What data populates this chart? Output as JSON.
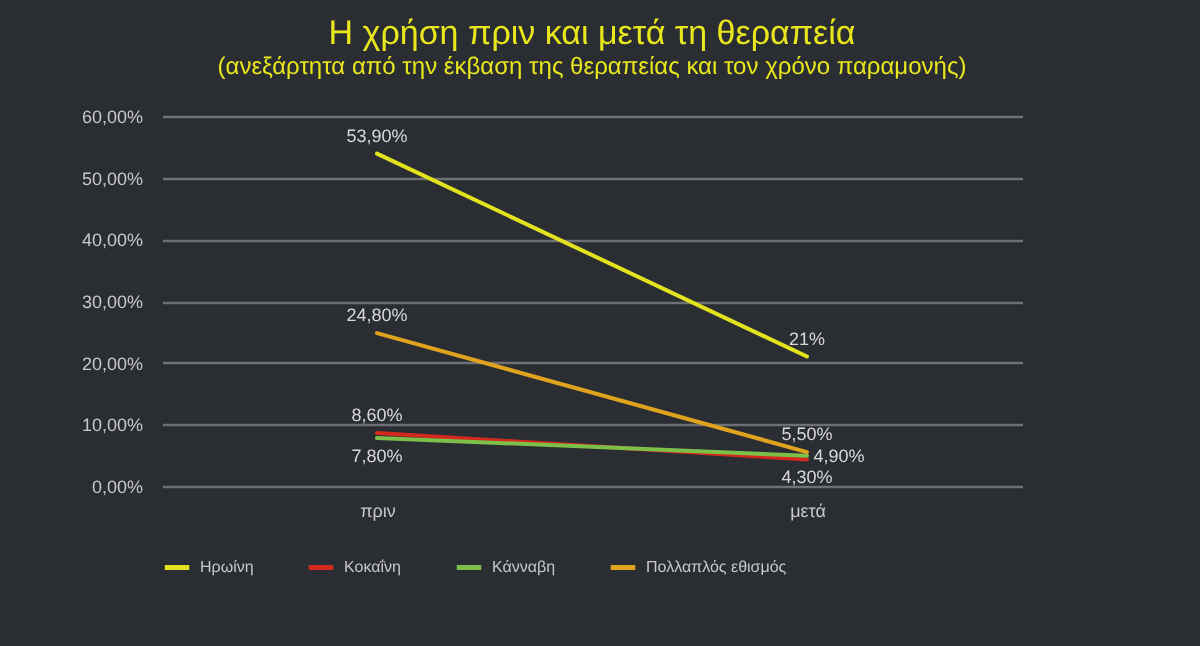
{
  "chart_data": {
    "type": "line",
    "title": "Η χρήση πριν και μετά τη θεραπεία",
    "subtitle": "(ανεξάρτητα από την έκβαση της θεραπείας και τον χρόνο παραμονής)",
    "categories": [
      "πριν",
      "μετά"
    ],
    "series": [
      {
        "name": "Ηρωίνη",
        "color": "#e3e21e",
        "values": [
          53.9,
          21
        ],
        "value_labels": [
          "53,90%",
          "21%"
        ]
      },
      {
        "name": "Κοκαΐνη",
        "color": "#d42a1e",
        "values": [
          8.6,
          4.3
        ],
        "value_labels": [
          "8,60%",
          "4,30%"
        ]
      },
      {
        "name": "Κάνναβη",
        "color": "#7cc04a",
        "values": [
          7.8,
          4.9
        ],
        "value_labels": [
          "7,80%",
          "4,90%"
        ]
      },
      {
        "name": "Πολλαπλός εθισμός",
        "color": "#e0a31e",
        "values": [
          24.8,
          5.5
        ],
        "value_labels": [
          "24,80%",
          "5,50%"
        ]
      }
    ],
    "ylim": [
      0,
      60
    ],
    "yticks": [
      {
        "value": 0,
        "label": "0,00%"
      },
      {
        "value": 10,
        "label": "10,00%"
      },
      {
        "value": 20,
        "label": "20,00%"
      },
      {
        "value": 30,
        "label": "30,00%"
      },
      {
        "value": 40,
        "label": "40,00%"
      },
      {
        "value": 50,
        "label": "50,00%"
      },
      {
        "value": 60,
        "label": "60,00%"
      }
    ],
    "grid": "y",
    "legend": "bottom",
    "marker": "none",
    "line_style": "solid"
  }
}
